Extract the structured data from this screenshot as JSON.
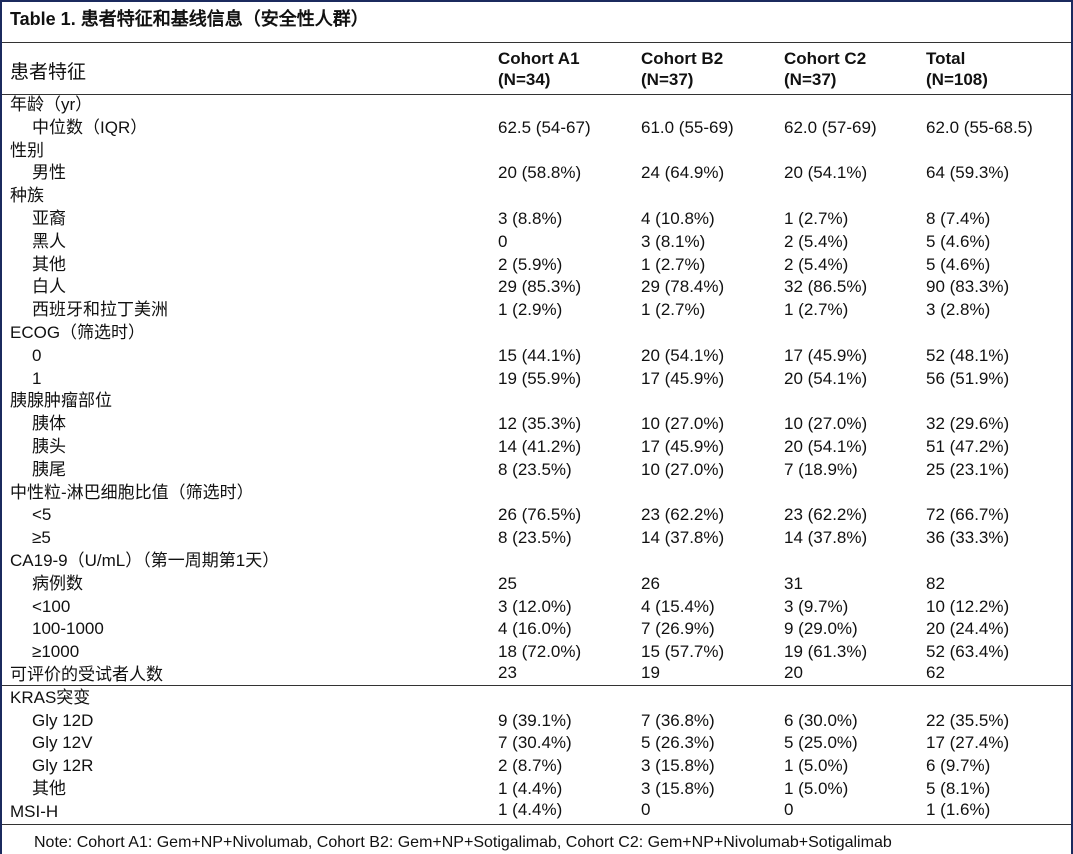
{
  "table": {
    "title": "Table 1.  患者特征和基线信息（安全性人群）",
    "row_header": "患者特征",
    "columns": [
      {
        "name": "Cohort A1",
        "n": "(N=34)"
      },
      {
        "name": "Cohort B2",
        "n": "(N=37)"
      },
      {
        "name": "Cohort C2",
        "n": "(N=37)"
      },
      {
        "name": "Total",
        "n": "(N=108)"
      }
    ],
    "sections": [
      {
        "label": "年龄（yr）",
        "rows": [
          {
            "label": "中位数（IQR）",
            "cells": [
              "62.5 (54-67)",
              "61.0 (55-69)",
              "62.0 (57-69)",
              "62.0 (55-68.5)"
            ]
          }
        ]
      },
      {
        "label": "性别",
        "rows": [
          {
            "label": "男性",
            "cells": [
              "20 (58.8%)",
              "24 (64.9%)",
              "20 (54.1%)",
              "64 (59.3%)"
            ]
          }
        ]
      },
      {
        "label": "种族",
        "rows": [
          {
            "label": "亚裔",
            "cells": [
              "3 (8.8%)",
              "4 (10.8%)",
              "1 (2.7%)",
              "8 (7.4%)"
            ]
          },
          {
            "label": "黑人",
            "cells": [
              "0",
              "3 (8.1%)",
              "2 (5.4%)",
              "5 (4.6%)"
            ]
          },
          {
            "label": "其他",
            "cells": [
              "2 (5.9%)",
              "1 (2.7%)",
              "2 (5.4%)",
              "5 (4.6%)"
            ]
          },
          {
            "label": "白人",
            "cells": [
              "29 (85.3%)",
              "29 (78.4%)",
              "32 (86.5%)",
              "90 (83.3%)"
            ]
          },
          {
            "label": "西班牙和拉丁美洲",
            "cells": [
              "1 (2.9%)",
              "1 (2.7%)",
              "1 (2.7%)",
              "3 (2.8%)"
            ]
          }
        ]
      },
      {
        "label": "ECOG（筛选时）",
        "rows": [
          {
            "label": "0",
            "cells": [
              "15 (44.1%)",
              "20 (54.1%)",
              "17 (45.9%)",
              "52 (48.1%)"
            ]
          },
          {
            "label": "1",
            "cells": [
              "19 (55.9%)",
              "17 (45.9%)",
              "20 (54.1%)",
              "56 (51.9%)"
            ]
          }
        ]
      },
      {
        "label": "胰腺肿瘤部位",
        "rows": [
          {
            "label": "胰体",
            "cells": [
              "12 (35.3%)",
              "10 (27.0%)",
              "10 (27.0%)",
              "32 (29.6%)"
            ]
          },
          {
            "label": "胰头",
            "cells": [
              "14 (41.2%)",
              "17 (45.9%)",
              "20 (54.1%)",
              "51 (47.2%)"
            ]
          },
          {
            "label": "胰尾",
            "cells": [
              "8 (23.5%)",
              "10 (27.0%)",
              "7 (18.9%)",
              "25 (23.1%)"
            ]
          }
        ]
      },
      {
        "label": "中性粒-淋巴细胞比值（筛选时）",
        "rows": [
          {
            "label": "<5",
            "cells": [
              "26 (76.5%)",
              "23 (62.2%)",
              "23 (62.2%)",
              "72 (66.7%)"
            ]
          },
          {
            "label": "≥5",
            "cells": [
              "8 (23.5%)",
              "14 (37.8%)",
              "14 (37.8%)",
              "36 (33.3%)"
            ]
          }
        ]
      },
      {
        "label": "CA19-9（U/mL）（第一周期第1天）",
        "rows": [
          {
            "label": "病例数",
            "cells": [
              "25",
              "26",
              "31",
              "82"
            ]
          },
          {
            "label": "<100",
            "cells": [
              "3 (12.0%)",
              "4 (15.4%)",
              "3 (9.7%)",
              "10 (12.2%)"
            ]
          },
          {
            "label": "100-1000",
            "cells": [
              "4 (16.0%)",
              "7 (26.9%)",
              "9 (29.0%)",
              "20 (24.4%)"
            ]
          },
          {
            "label": "≥1000",
            "cells": [
              "18 (72.0%)",
              "15 (57.7%)",
              "19 (61.3%)",
              "52 (63.4%)"
            ]
          }
        ]
      },
      {
        "label": "可评价的受试者人数",
        "cells": [
          "23",
          "19",
          "20",
          "62"
        ]
      },
      {
        "label": "KRAS突变",
        "rows": [
          {
            "label": "Gly 12D",
            "cells": [
              "9 (39.1%)",
              "7 (36.8%)",
              "6 (30.0%)",
              "22 (35.5%)"
            ]
          },
          {
            "label": "Gly 12V",
            "cells": [
              "7 (30.4%)",
              "5 (26.3%)",
              "5 (25.0%)",
              "17 (27.4%)"
            ]
          },
          {
            "label": "Gly 12R",
            "cells": [
              "2 (8.7%)",
              "3 (15.8%)",
              "1 (5.0%)",
              "6 (9.7%)"
            ]
          },
          {
            "label": "其他",
            "cells": [
              "1 (4.4%)",
              "3 (15.8%)",
              "1 (5.0%)",
              "5 (8.1%)"
            ]
          }
        ]
      },
      {
        "label": "MSI-H",
        "cells": [
          "1 (4.4%)",
          "0",
          "0",
          "1 (1.6%)"
        ]
      }
    ],
    "note": "Note: Cohort A1: Gem+NP+Nivolumab, Cohort B2: Gem+NP+Sotigalimab, Cohort C2: Gem+NP+Nivolumab+Sotigalimab"
  }
}
